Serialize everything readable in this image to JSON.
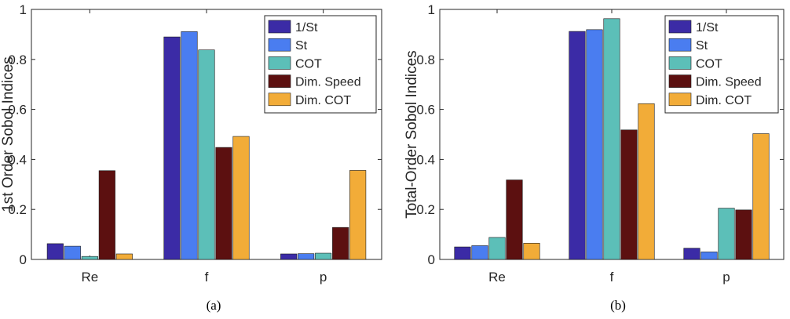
{
  "chart_data": [
    {
      "type": "bar",
      "caption": "(a)",
      "ylabel": "1st Order Sobol Indices",
      "xlabel": "",
      "categories": [
        "Re",
        "f",
        "p"
      ],
      "ylim": [
        0,
        1
      ],
      "yticks": [
        "0",
        "0.2",
        "0.4",
        "0.6",
        "0.8",
        "1"
      ],
      "legend_position": "top-right",
      "series": [
        {
          "name": "1/St",
          "color": "#3b2ba6",
          "values": [
            0.063,
            0.89,
            0.022
          ]
        },
        {
          "name": "St",
          "color": "#4a7df0",
          "values": [
            0.053,
            0.911,
            0.023
          ]
        },
        {
          "name": "COT",
          "color": "#5cbfb8",
          "values": [
            0.012,
            0.838,
            0.025
          ]
        },
        {
          "name": "Dim. Speed",
          "color": "#5c1010",
          "values": [
            0.355,
            0.448,
            0.128
          ]
        },
        {
          "name": "Dim. COT",
          "color": "#f2ac38",
          "values": [
            0.022,
            0.492,
            0.356
          ]
        }
      ]
    },
    {
      "type": "bar",
      "caption": "(b)",
      "ylabel": "Total-Order Sobol Indices",
      "xlabel": "",
      "categories": [
        "Re",
        "f",
        "p"
      ],
      "ylim": [
        0,
        1
      ],
      "yticks": [
        "0",
        "0.2",
        "0.4",
        "0.6",
        "0.8",
        "1"
      ],
      "legend_position": "top-right",
      "series": [
        {
          "name": "1/St",
          "color": "#3b2ba6",
          "values": [
            0.05,
            0.912,
            0.045
          ]
        },
        {
          "name": "St",
          "color": "#4a7df0",
          "values": [
            0.055,
            0.919,
            0.03
          ]
        },
        {
          "name": "COT",
          "color": "#5cbfb8",
          "values": [
            0.088,
            0.963,
            0.205
          ]
        },
        {
          "name": "Dim. Speed",
          "color": "#5c1010",
          "values": [
            0.318,
            0.518,
            0.198
          ]
        },
        {
          "name": "Dim. COT",
          "color": "#f2ac38",
          "values": [
            0.065,
            0.623,
            0.503
          ]
        }
      ]
    }
  ]
}
